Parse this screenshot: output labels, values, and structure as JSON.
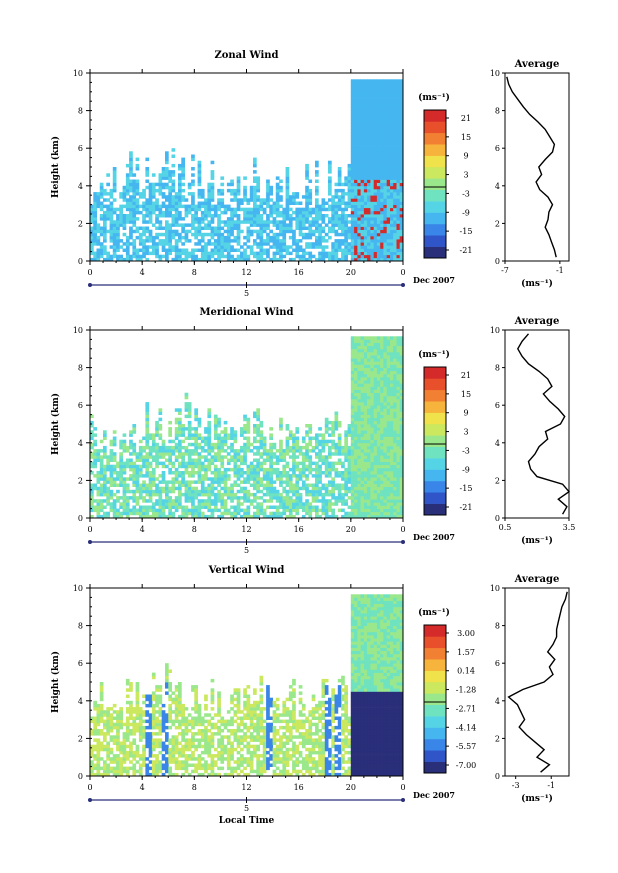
{
  "chart_data": [
    {
      "type": "heatmap",
      "title": "Zonal Wind",
      "ylabel": "Height (km)",
      "ylim": [
        0,
        10
      ],
      "yticks": [
        "0",
        "2",
        "4",
        "6",
        "8",
        "10"
      ],
      "xlim": [
        0,
        24
      ],
      "xticks": [
        "0",
        "4",
        "8",
        "12",
        "16",
        "20",
        "0"
      ],
      "date_tick": "5",
      "date_label": "Dec 2007",
      "colorbar": {
        "unit": "(ms⁻¹)",
        "ticks": [
          "21",
          "15",
          "9",
          "3",
          "-3",
          "-9",
          "-15",
          "-21"
        ],
        "colors": [
          "#2a2f7a",
          "#2f55c8",
          "#3a86e8",
          "#45b6f0",
          "#55d4e6",
          "#6fe2c0",
          "#9be88c",
          "#cbe85e",
          "#efe24a",
          "#f6b43c",
          "#f28032",
          "#e8502c",
          "#d42a2a"
        ]
      },
      "average": {
        "title": "Average",
        "xlabel": "(ms⁻¹)",
        "xticks": [
          "-7",
          "-1"
        ],
        "xlim": [
          -7,
          0
        ],
        "heights": [
          0.2,
          0.6,
          1.0,
          1.4,
          1.8,
          2.2,
          2.6,
          3.0,
          3.4,
          3.8,
          4.2,
          4.6,
          5.0,
          5.4,
          5.8,
          6.2,
          6.6,
          7.0,
          7.4,
          7.8,
          8.2,
          8.6,
          9.0,
          9.4,
          9.8
        ],
        "values": [
          -1.4,
          -1.6,
          -1.9,
          -2.2,
          -2.6,
          -2.3,
          -2.2,
          -1.8,
          -2.3,
          -3.2,
          -3.6,
          -3.0,
          -3.3,
          -2.6,
          -1.8,
          -1.6,
          -2.1,
          -2.6,
          -3.4,
          -4.3,
          -5.0,
          -5.6,
          -6.2,
          -6.6,
          -6.8
        ]
      }
    },
    {
      "type": "heatmap",
      "title": "Meridional Wind",
      "ylabel": "Height (km)",
      "ylim": [
        0,
        10
      ],
      "yticks": [
        "0",
        "2",
        "4",
        "6",
        "8",
        "10"
      ],
      "xlim": [
        0,
        24
      ],
      "xticks": [
        "0",
        "4",
        "8",
        "12",
        "16",
        "20",
        "0"
      ],
      "date_tick": "5",
      "date_label": "Dec 2007",
      "colorbar": {
        "unit": "(ms⁻¹)",
        "ticks": [
          "21",
          "15",
          "9",
          "3",
          "-3",
          "-9",
          "-15",
          "-21"
        ],
        "colors": [
          "#2a2f7a",
          "#2f55c8",
          "#3a86e8",
          "#45b6f0",
          "#55d4e6",
          "#6fe2c0",
          "#9be88c",
          "#cbe85e",
          "#efe24a",
          "#f6b43c",
          "#f28032",
          "#e8502c",
          "#d42a2a"
        ]
      },
      "average": {
        "title": "Average",
        "xlabel": "(ms⁻¹)",
        "xticks": [
          "0.5",
          "3.5"
        ],
        "xlim": [
          0.5,
          3.5
        ],
        "heights": [
          0.2,
          0.6,
          1.0,
          1.4,
          1.8,
          2.2,
          2.6,
          3.0,
          3.4,
          3.8,
          4.2,
          4.6,
          5.0,
          5.4,
          5.8,
          6.2,
          6.6,
          7.0,
          7.4,
          7.8,
          8.2,
          8.6,
          9.0,
          9.4,
          9.8
        ],
        "values": [
          3.2,
          3.4,
          3.0,
          3.5,
          3.2,
          2.0,
          1.7,
          1.6,
          1.9,
          2.1,
          2.5,
          2.4,
          3.1,
          3.3,
          3.0,
          2.6,
          2.3,
          2.7,
          2.5,
          2.1,
          1.6,
          1.3,
          1.1,
          1.3,
          1.6
        ]
      }
    },
    {
      "type": "heatmap",
      "title": "Vertical Wind",
      "ylabel": "Height (km)",
      "xlabel": "Local Time",
      "ylim": [
        0,
        10
      ],
      "yticks": [
        "0",
        "2",
        "4",
        "6",
        "8",
        "10"
      ],
      "xlim": [
        0,
        24
      ],
      "xticks": [
        "0",
        "4",
        "8",
        "12",
        "16",
        "20",
        "0"
      ],
      "date_tick": "5",
      "date_label": "Dec 2007",
      "colorbar": {
        "unit": "(ms⁻¹)",
        "ticks": [
          "3.00",
          "1.57",
          "0.14",
          "-1.28",
          "-2.71",
          "-4.14",
          "-5.57",
          "-7.00"
        ],
        "colors": [
          "#2a2f7a",
          "#2f55c8",
          "#3a86e8",
          "#45b6f0",
          "#55d4e6",
          "#6fe2c0",
          "#9be88c",
          "#cbe85e",
          "#efe24a",
          "#f6b43c",
          "#f28032",
          "#e8502c",
          "#d42a2a"
        ]
      },
      "average": {
        "title": "Average",
        "xlabel": "(ms⁻¹)",
        "xticks": [
          "-3",
          "-1"
        ],
        "xlim": [
          -3.6,
          0.0
        ],
        "heights": [
          0.2,
          0.6,
          1.0,
          1.4,
          1.8,
          2.2,
          2.6,
          3.0,
          3.4,
          3.8,
          4.2,
          4.6,
          5.0,
          5.4,
          5.8,
          6.2,
          6.6,
          7.0,
          7.4,
          7.8,
          8.2,
          8.6,
          9.0,
          9.4,
          9.8
        ],
        "values": [
          -1.6,
          -1.1,
          -1.8,
          -1.4,
          -1.9,
          -2.4,
          -2.8,
          -2.5,
          -2.7,
          -2.9,
          -3.4,
          -2.6,
          -1.4,
          -0.9,
          -1.1,
          -0.8,
          -1.2,
          -0.9,
          -0.7,
          -0.7,
          -0.6,
          -0.5,
          -0.4,
          -0.2,
          -0.1
        ]
      }
    }
  ]
}
